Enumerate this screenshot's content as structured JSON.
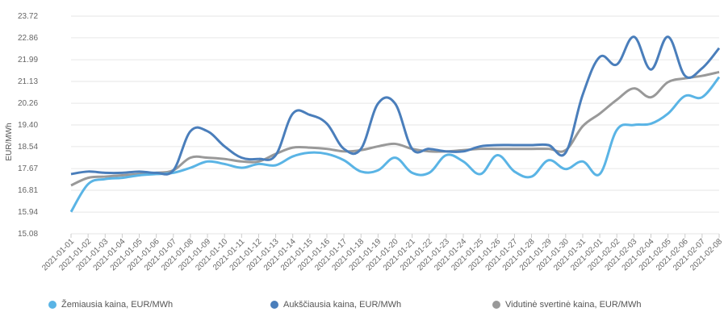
{
  "chart_data": {
    "type": "line",
    "ylabel": "EUR/MWh",
    "ylim": [
      15.08,
      23.72
    ],
    "yticks": [
      "23.72",
      "22.86",
      "21.99",
      "21.13",
      "20.26",
      "19.40",
      "18.54",
      "17.67",
      "16.81",
      "15.94",
      "15.08"
    ],
    "grid": true,
    "legend_position": "bottom",
    "x": [
      "2021-01-01",
      "2021-01-02",
      "2021-01-03",
      "2021-01-04",
      "2021-01-05",
      "2021-01-06",
      "2021-01-07",
      "2021-01-08",
      "2021-01-09",
      "2021-01-10",
      "2021-01-11",
      "2021-01-12",
      "2021-01-13",
      "2021-01-14",
      "2021-01-15",
      "2021-01-16",
      "2021-01-17",
      "2021-01-18",
      "2021-01-19",
      "2021-01-20",
      "2021-01-21",
      "2021-01-22",
      "2021-01-23",
      "2021-01-24",
      "2021-01-25",
      "2021-01-26",
      "2021-01-27",
      "2021-01-28",
      "2021-01-29",
      "2021-01-30",
      "2021-01-31",
      "2021-02-01",
      "2021-02-02",
      "2021-02-03",
      "2021-02-04",
      "2021-02-05",
      "2021-02-06",
      "2021-02-07",
      "2021-02-08"
    ],
    "series": [
      {
        "name": "Žemiausia kaina, EUR/MWh",
        "color": "#5ab4e5",
        "values": [
          15.95,
          17.05,
          17.25,
          17.3,
          17.4,
          17.45,
          17.5,
          17.7,
          17.95,
          17.85,
          17.7,
          17.85,
          17.8,
          18.15,
          18.3,
          18.25,
          18.0,
          17.55,
          17.6,
          18.1,
          17.5,
          17.5,
          18.2,
          17.95,
          17.45,
          18.2,
          17.55,
          17.35,
          18.0,
          17.65,
          17.95,
          17.45,
          19.2,
          19.4,
          19.45,
          19.85,
          20.55,
          20.5,
          21.3
        ]
      },
      {
        "name": "Aukščiausia kaina, EUR/MWh",
        "color": "#4a7ebb",
        "values": [
          17.45,
          17.55,
          17.5,
          17.5,
          17.55,
          17.5,
          17.6,
          19.15,
          19.15,
          18.55,
          18.1,
          18.05,
          18.2,
          19.85,
          19.8,
          19.45,
          18.45,
          18.45,
          20.25,
          20.25,
          18.45,
          18.45,
          18.35,
          18.35,
          18.55,
          18.6,
          18.6,
          18.6,
          18.6,
          18.3,
          20.6,
          22.1,
          21.8,
          22.9,
          21.6,
          22.9,
          21.35,
          21.65,
          22.45
        ]
      },
      {
        "name": "Vidutinė svertinė kaina, EUR/MWh",
        "color": "#999999",
        "values": [
          17.0,
          17.3,
          17.35,
          17.4,
          17.45,
          17.5,
          17.6,
          18.1,
          18.1,
          18.05,
          17.95,
          17.95,
          18.25,
          18.5,
          18.5,
          18.45,
          18.35,
          18.4,
          18.55,
          18.65,
          18.45,
          18.35,
          18.35,
          18.4,
          18.45,
          18.45,
          18.45,
          18.45,
          18.45,
          18.4,
          19.35,
          19.85,
          20.4,
          20.85,
          20.5,
          21.1,
          21.25,
          21.35,
          21.5
        ]
      }
    ]
  }
}
